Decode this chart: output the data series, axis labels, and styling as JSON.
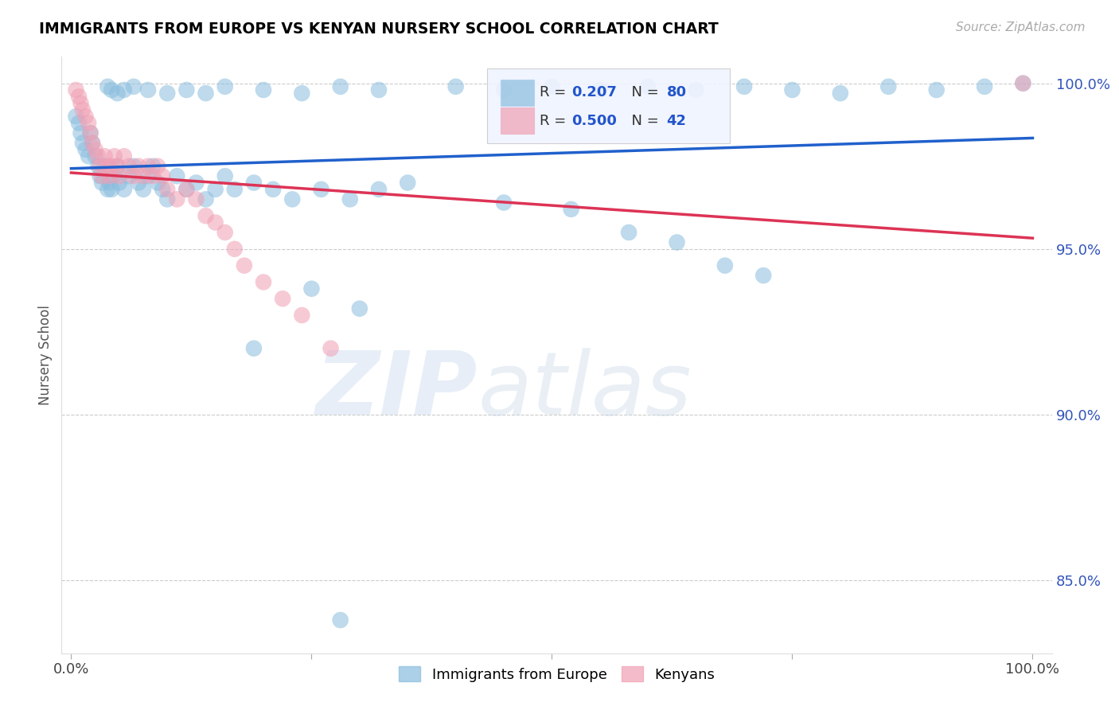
{
  "title": "IMMIGRANTS FROM EUROPE VS KENYAN NURSERY SCHOOL CORRELATION CHART",
  "source": "Source: ZipAtlas.com",
  "ylabel": "Nursery School",
  "xlim": [
    -0.01,
    1.02
  ],
  "ylim": [
    0.828,
    1.008
  ],
  "yticks": [
    0.85,
    0.9,
    0.95,
    1.0
  ],
  "ytick_labels": [
    "85.0%",
    "90.0%",
    "95.0%",
    "100.0%"
  ],
  "xtick_positions": [
    0.0,
    0.25,
    0.5,
    0.75,
    1.0
  ],
  "xtick_labels": [
    "0.0%",
    "",
    "",
    "",
    "100.0%"
  ],
  "blue_color": "#89bcde",
  "pink_color": "#f0a0b4",
  "trendline_blue": "#2060cc",
  "trendline_pink": "#dd3355",
  "watermark_zip": "ZIP",
  "watermark_atlas": "atlas",
  "legend_box_color": "#f0f4ff",
  "blue_x": [
    0.005,
    0.008,
    0.01,
    0.012,
    0.015,
    0.018,
    0.02,
    0.022,
    0.025,
    0.028,
    0.03,
    0.032,
    0.035,
    0.038,
    0.04,
    0.042,
    0.045,
    0.048,
    0.05,
    0.055,
    0.06,
    0.065,
    0.07,
    0.075,
    0.08,
    0.085,
    0.09,
    0.095,
    0.1,
    0.11,
    0.12,
    0.13,
    0.14,
    0.15,
    0.16,
    0.17,
    0.19,
    0.21,
    0.23,
    0.26,
    0.29,
    0.32,
    0.35,
    0.038,
    0.042,
    0.048,
    0.055,
    0.065,
    0.08,
    0.1,
    0.12,
    0.14,
    0.16,
    0.2,
    0.24,
    0.28,
    0.32,
    0.4,
    0.45,
    0.5,
    0.55,
    0.6,
    0.65,
    0.7,
    0.75,
    0.8,
    0.85,
    0.9,
    0.95,
    0.99,
    0.45,
    0.52,
    0.58,
    0.63,
    0.68,
    0.72,
    0.25,
    0.3,
    0.19,
    0.28
  ],
  "blue_y": [
    0.99,
    0.988,
    0.985,
    0.982,
    0.98,
    0.978,
    0.985,
    0.982,
    0.978,
    0.975,
    0.972,
    0.97,
    0.975,
    0.968,
    0.97,
    0.968,
    0.972,
    0.975,
    0.97,
    0.968,
    0.972,
    0.975,
    0.97,
    0.968,
    0.972,
    0.975,
    0.97,
    0.968,
    0.965,
    0.972,
    0.968,
    0.97,
    0.965,
    0.968,
    0.972,
    0.968,
    0.97,
    0.968,
    0.965,
    0.968,
    0.965,
    0.968,
    0.97,
    0.999,
    0.998,
    0.997,
    0.998,
    0.999,
    0.998,
    0.997,
    0.998,
    0.997,
    0.999,
    0.998,
    0.997,
    0.999,
    0.998,
    0.999,
    0.998,
    0.999,
    0.998,
    0.999,
    0.998,
    0.999,
    0.998,
    0.997,
    0.999,
    0.998,
    0.999,
    1.0,
    0.964,
    0.962,
    0.955,
    0.952,
    0.945,
    0.942,
    0.938,
    0.932,
    0.92,
    0.838
  ],
  "pink_x": [
    0.005,
    0.008,
    0.01,
    0.012,
    0.015,
    0.018,
    0.02,
    0.022,
    0.025,
    0.028,
    0.03,
    0.032,
    0.035,
    0.038,
    0.04,
    0.042,
    0.045,
    0.048,
    0.05,
    0.055,
    0.06,
    0.065,
    0.07,
    0.075,
    0.08,
    0.085,
    0.09,
    0.095,
    0.1,
    0.11,
    0.12,
    0.13,
    0.14,
    0.15,
    0.16,
    0.17,
    0.18,
    0.2,
    0.22,
    0.24,
    0.27,
    0.99
  ],
  "pink_y": [
    0.998,
    0.996,
    0.994,
    0.992,
    0.99,
    0.988,
    0.985,
    0.982,
    0.98,
    0.978,
    0.975,
    0.972,
    0.978,
    0.975,
    0.972,
    0.975,
    0.978,
    0.975,
    0.972,
    0.978,
    0.975,
    0.972,
    0.975,
    0.972,
    0.975,
    0.972,
    0.975,
    0.972,
    0.968,
    0.965,
    0.968,
    0.965,
    0.96,
    0.958,
    0.955,
    0.95,
    0.945,
    0.94,
    0.935,
    0.93,
    0.92,
    1.0
  ]
}
